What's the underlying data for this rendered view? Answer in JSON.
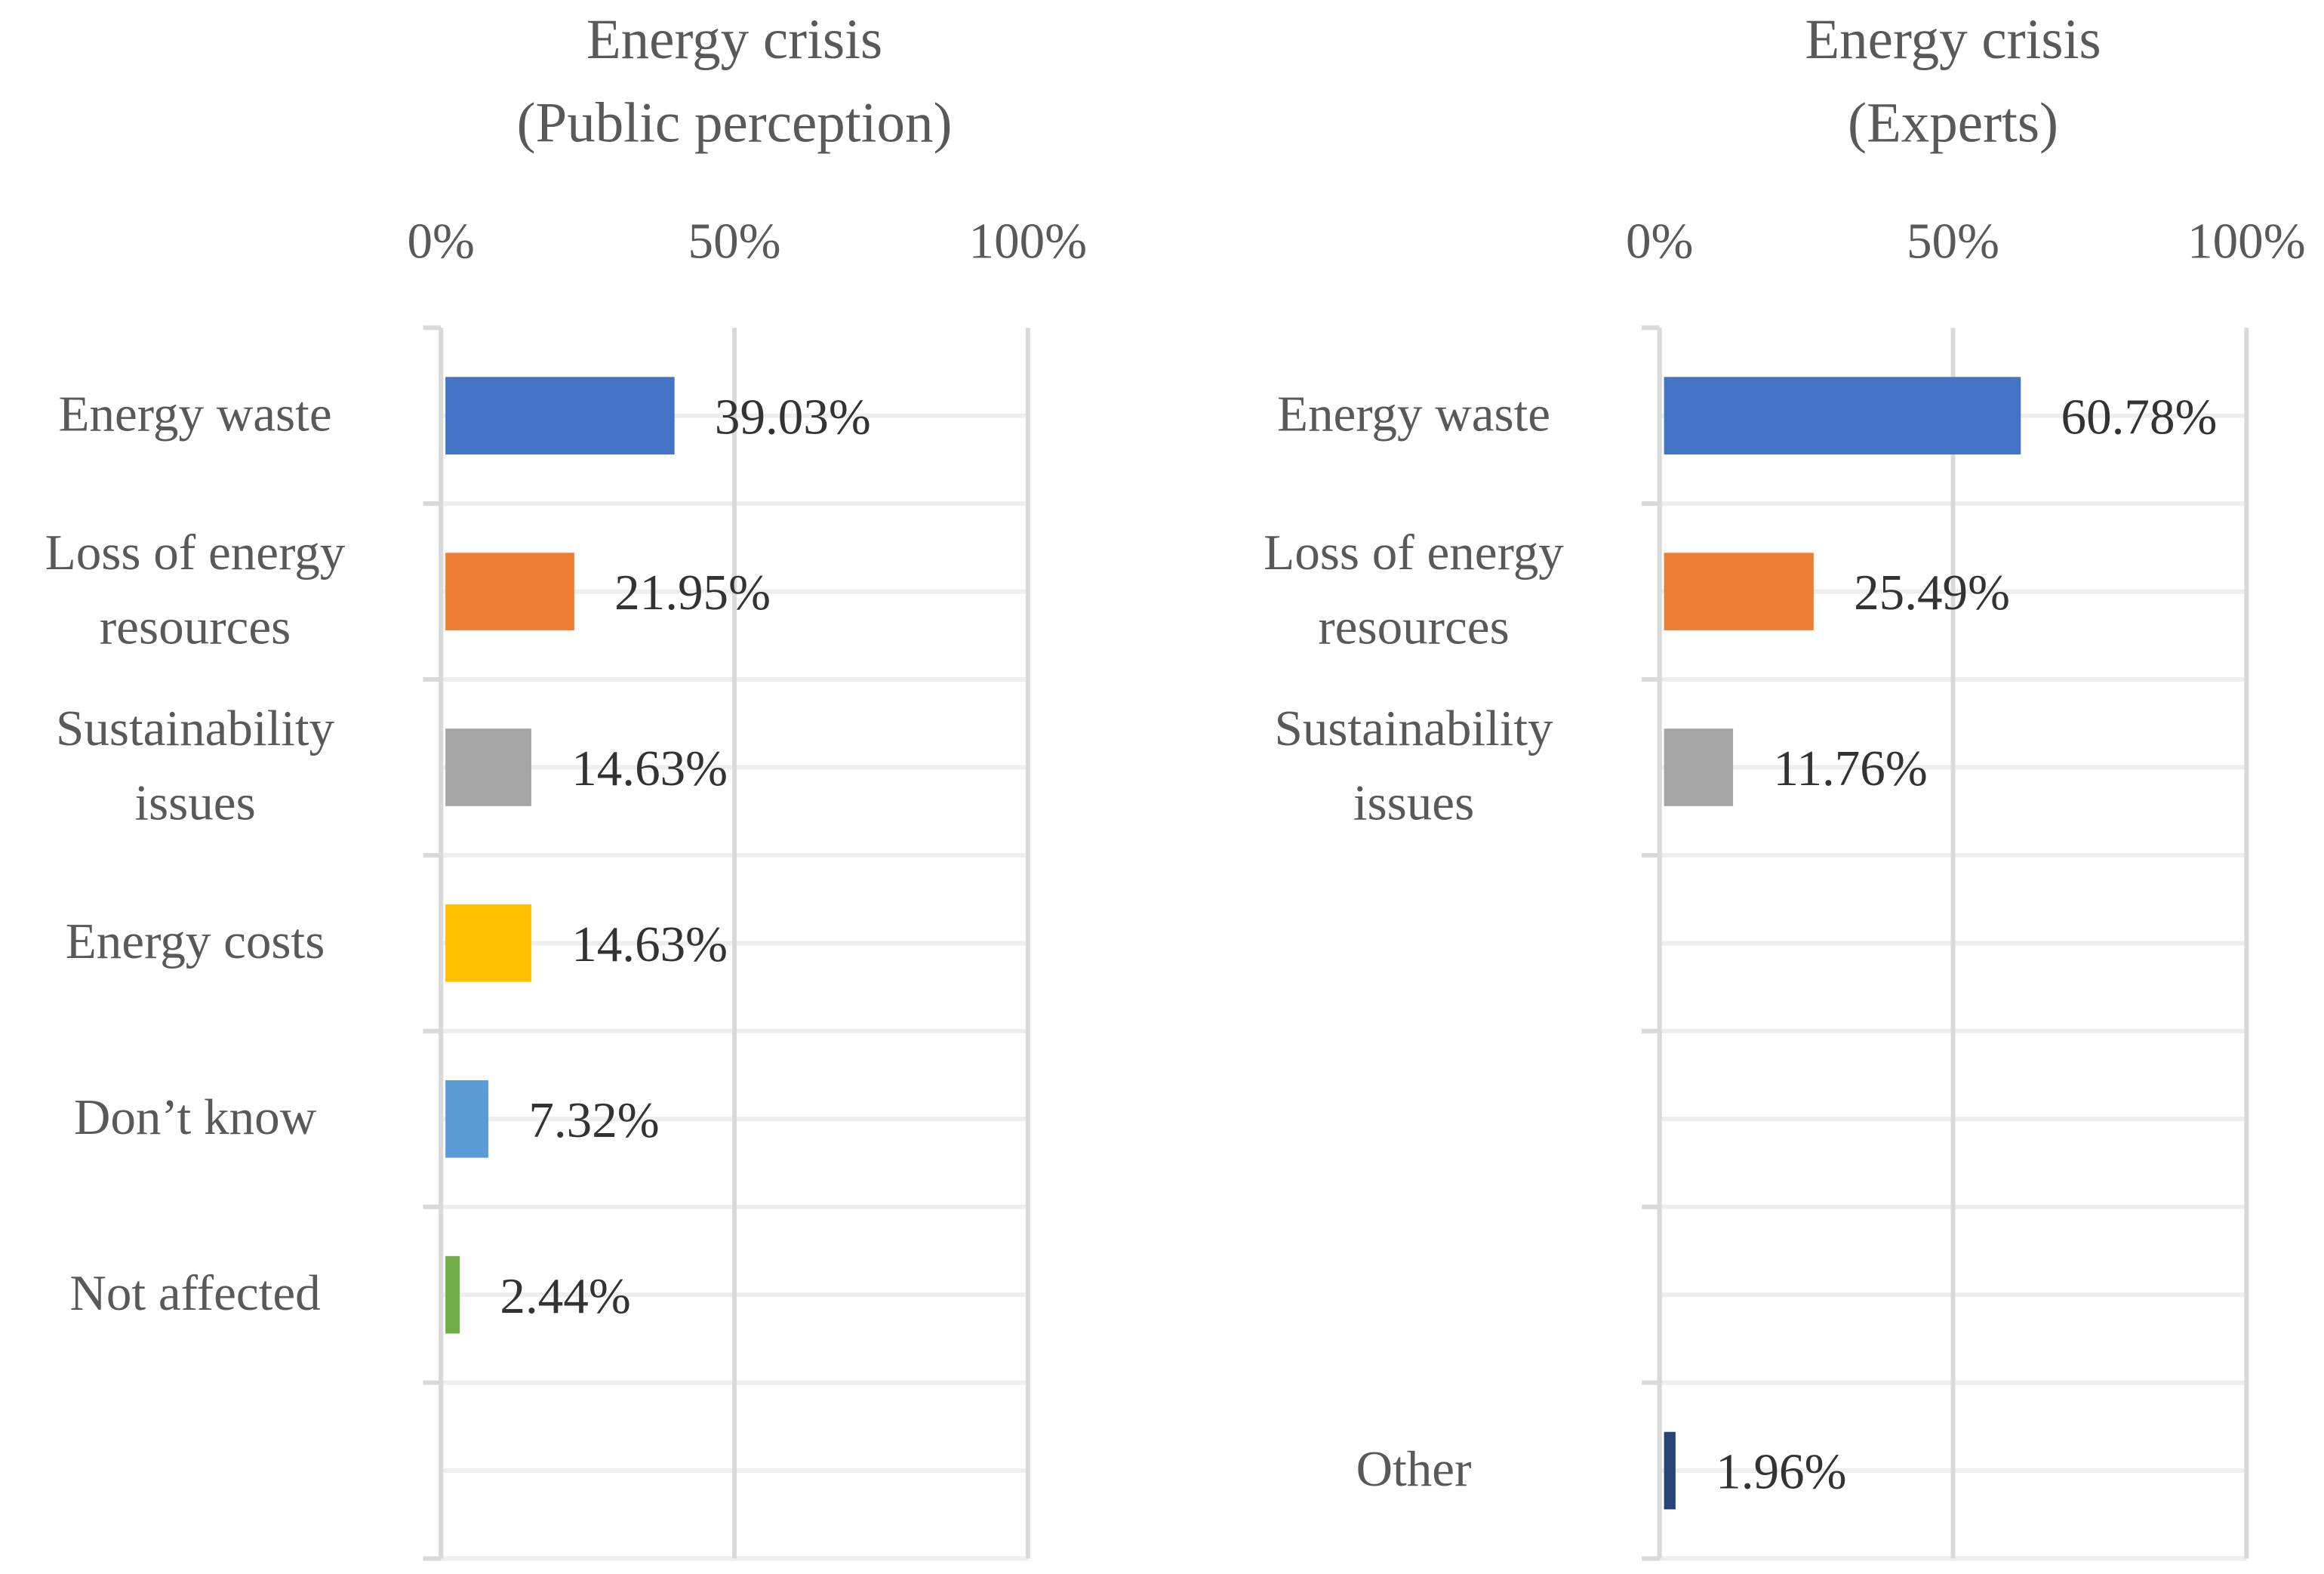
{
  "chart_data": [
    {
      "type": "bar",
      "title": "Energy crisis",
      "subtitle": "(Public perception)",
      "categories": [
        "Energy waste",
        "Loss of energy resources",
        "Sustainability issues",
        "Energy costs",
        "Don’t know",
        "Not affected",
        null
      ],
      "values": [
        39.03,
        21.95,
        14.63,
        14.63,
        7.32,
        2.44,
        null
      ],
      "value_labels": [
        "39.03%",
        "21.95%",
        "14.63%",
        "14.63%",
        "7.32%",
        "2.44%",
        null
      ],
      "colors": [
        "#4472c4",
        "#ed7d31",
        "#a5a5a5",
        "#ffc000",
        "#5b9bd5",
        "#70ad47",
        null
      ],
      "xlim": [
        0,
        100
      ],
      "xticks": [
        {
          "value": 0,
          "label": "0%"
        },
        {
          "value": 50,
          "label": "50%"
        },
        {
          "value": 100,
          "label": "100%"
        }
      ],
      "grid": true
    },
    {
      "type": "bar",
      "title": "Energy crisis",
      "subtitle": "(Experts)",
      "categories": [
        "Energy waste",
        "Loss of energy resources",
        "Sustainability issues",
        null,
        null,
        null,
        "Other"
      ],
      "values": [
        60.78,
        25.49,
        11.76,
        null,
        null,
        null,
        1.96
      ],
      "value_labels": [
        "60.78%",
        "25.49%",
        "11.76%",
        null,
        null,
        null,
        "1.96%"
      ],
      "colors": [
        "#4472c4",
        "#ed7d31",
        "#a5a5a5",
        null,
        null,
        null,
        "#264478"
      ],
      "xlim": [
        0,
        100
      ],
      "xticks": [
        {
          "value": 0,
          "label": "0%"
        },
        {
          "value": 50,
          "label": "50%"
        },
        {
          "value": 100,
          "label": "100%"
        }
      ],
      "grid": true
    }
  ]
}
